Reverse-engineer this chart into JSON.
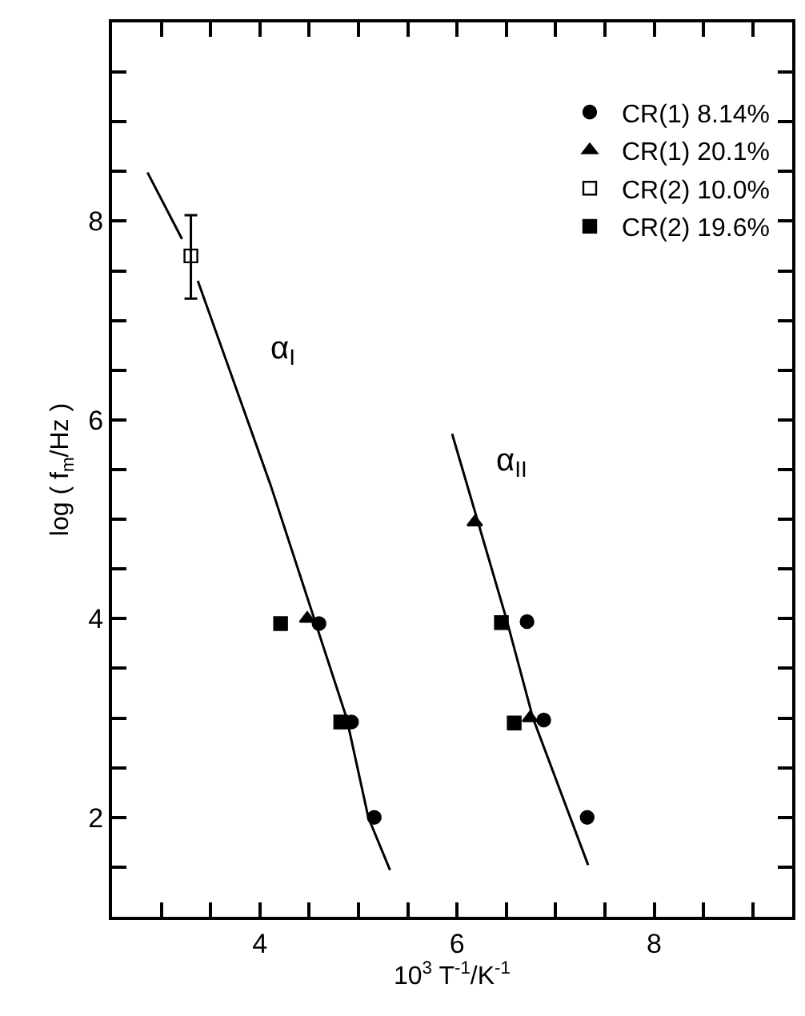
{
  "chart_data": {
    "type": "scatter",
    "xlabel": "10$^{3}$ T$^{-1}$/K$^{-1}$",
    "ylabel": "log ( f$_{m}$/Hz )",
    "xlim": [
      2.5,
      9.4
    ],
    "xticks": [
      {
        "value": 3,
        "label": null
      },
      {
        "value": 3.5,
        "label": null
      },
      4,
      {
        "value": 4.5,
        "label": null
      },
      {
        "value": 5,
        "label": null
      },
      {
        "value": 5.5,
        "label": null
      },
      6,
      {
        "value": 6.5,
        "label": null
      },
      {
        "value": 7,
        "label": null
      },
      {
        "value": 7.5,
        "label": null
      },
      8,
      {
        "value": 8.5,
        "label": null
      },
      {
        "value": 9,
        "label": null
      }
    ],
    "ylim": [
      1,
      10
    ],
    "yticks": [
      {
        "value": 1.5,
        "label": null
      },
      2,
      {
        "value": 2.5,
        "label": null
      },
      {
        "value": 3,
        "label": null
      },
      {
        "value": 3.5,
        "label": null
      },
      4,
      {
        "value": 4.5,
        "label": null
      },
      {
        "value": 5,
        "label": null
      },
      {
        "value": 5.5,
        "label": null
      },
      6,
      {
        "value": 6.5,
        "label": null
      },
      {
        "value": 7,
        "label": null
      },
      {
        "value": 7.5,
        "label": null
      },
      8,
      {
        "value": 8.5,
        "label": null
      },
      {
        "value": 9,
        "label": null
      },
      {
        "value": 9.5,
        "label": null
      }
    ],
    "legend": "top right",
    "series": [
      {
        "name": "CR(1) 8.14%",
        "color": "#000000",
        "marker": "circle",
        "x": [
          4.6,
          4.93,
          5.16,
          6.71,
          6.88,
          7.32
        ],
        "values": [
          3.95,
          2.96,
          2.0,
          3.97,
          2.98,
          2.0
        ]
      },
      {
        "name": "CR(1) 20.1%",
        "color": "#000000",
        "marker": "triangle",
        "x": [
          4.48,
          6.18,
          6.74
        ],
        "values": [
          4.0,
          4.97,
          3.0
        ]
      },
      {
        "name": "CR(2) 10.0%",
        "color": "#000000",
        "marker": "square-open",
        "x": [
          3.3
        ],
        "values": [
          7.65
        ],
        "errors": [
          [
            7.22,
            8.06
          ]
        ]
      },
      {
        "name": "CR(2) 19.6%",
        "color": "#000000",
        "marker": "square",
        "x": [
          4.21,
          4.82,
          6.45,
          6.58
        ],
        "values": [
          3.95,
          2.96,
          3.96,
          2.95
        ]
      },
      {
        "type": "line",
        "color": "#000000",
        "marker": "none",
        "line_style": "solid",
        "x": [
          2.86,
          3.21,
          3.29,
          3.37,
          4.11,
          4.88,
          5.1,
          5.32
        ],
        "values": [
          8.49,
          7.82,
          null,
          7.4,
          5.34,
          3.0,
          2.0,
          1.47
        ]
      },
      {
        "type": "line",
        "color": "#000000",
        "marker": "none",
        "line_style": "solid",
        "x": [
          5.95,
          6.5,
          6.77,
          7.33
        ],
        "values": [
          5.86,
          4.0,
          3.0,
          1.52
        ]
      }
    ],
    "annotations": [
      "α$_{I}$",
      "α$_{II}$"
    ]
  }
}
